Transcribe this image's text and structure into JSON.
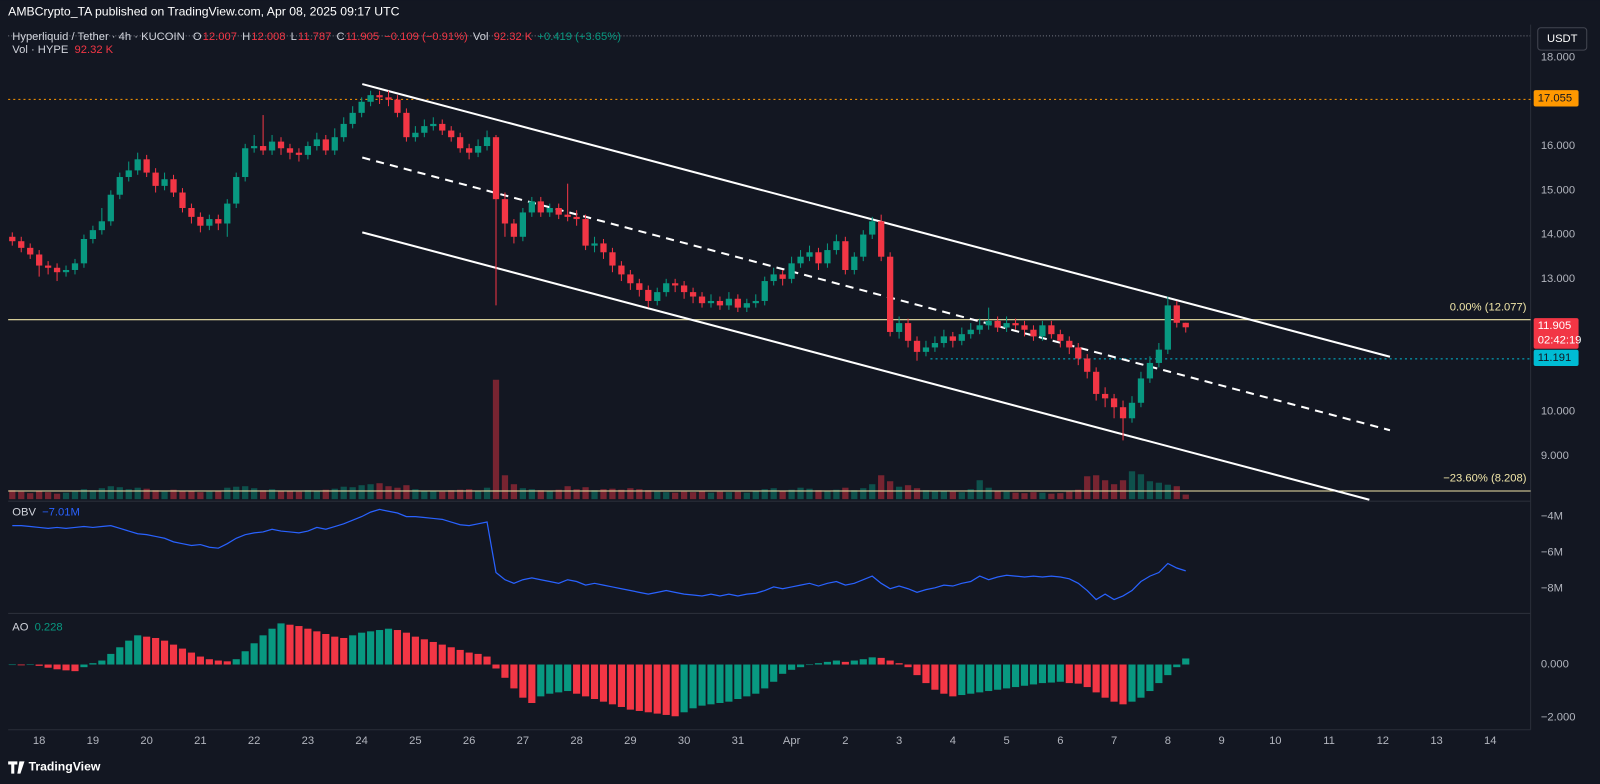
{
  "header": {
    "published": "AMBCrypto_TA published on TradingView.com, Apr 08, 2025 09:17 UTC",
    "currency": "USDT",
    "brand": "TradingView"
  },
  "chart_data": [
    {
      "type": "candlestick",
      "symbol": "Hyperliquid / Tether · 4h · KUCOIN",
      "ohlc_keys": [
        "O",
        "H",
        "L",
        "C"
      ],
      "legend_extra": [
        {
          "text": "−0.109 (−0.91%)",
          "color": "#f23645"
        },
        {
          "text": "Vol",
          "color": "#d1d4dc"
        },
        {
          "text": "92.32 K",
          "color": "#f23645"
        },
        {
          "text": "+0.419 (+3.65%)",
          "color": "#089981"
        }
      ],
      "volume_legend": [
        {
          "text": "Vol · HYPE",
          "color": "#d1d4dc"
        },
        {
          "text": "92.32 K",
          "color": "#f23645"
        }
      ],
      "up_color": "#089981",
      "down_color": "#f23645",
      "open": [
        13.95,
        13.85,
        13.7,
        13.55,
        13.3,
        13.25,
        13.15,
        13.2,
        13.35,
        13.9,
        14.1,
        14.3,
        14.9,
        15.3,
        15.45,
        15.7,
        15.4,
        15.1,
        15.25,
        14.95,
        14.6,
        14.4,
        14.2,
        14.35,
        14.25,
        14.7,
        15.3,
        15.95,
        16.0,
        15.9,
        16.1,
        15.95,
        15.85,
        15.8,
        16.0,
        16.15,
        15.9,
        16.2,
        16.5,
        16.75,
        17.0,
        17.15,
        17.1,
        17.05,
        16.75,
        16.2,
        16.3,
        16.45,
        16.5,
        16.35,
        16.2,
        15.95,
        15.85,
        16.0,
        16.2,
        14.8,
        14.25,
        13.95,
        14.5,
        14.75,
        14.5,
        14.6,
        14.45,
        14.4,
        14.35,
        13.75,
        13.8,
        13.6,
        13.3,
        13.1,
        12.9,
        12.75,
        12.5,
        12.7,
        12.9,
        12.85,
        12.7,
        12.6,
        12.45,
        12.5,
        12.4,
        12.55,
        12.35,
        12.45,
        12.5,
        12.95,
        13.1,
        13.0,
        13.35,
        13.5,
        13.6,
        13.35,
        13.65,
        13.85,
        13.2,
        13.5,
        14.0,
        14.3,
        13.5,
        11.8,
        12.0,
        11.6,
        11.35,
        11.45,
        11.55,
        11.7,
        11.6,
        11.75,
        11.85,
        11.95,
        12.05,
        11.9,
        12.0,
        11.95,
        11.85,
        11.7,
        11.95,
        11.75,
        11.6,
        11.45,
        11.2,
        10.9,
        10.4,
        10.3,
        10.1,
        9.85,
        10.2,
        10.75,
        11.1,
        11.4,
        12.4,
        12.007
      ],
      "high": [
        14.05,
        13.95,
        13.8,
        13.65,
        13.4,
        13.35,
        13.3,
        13.45,
        14.0,
        14.2,
        14.6,
        15.0,
        15.4,
        15.65,
        15.85,
        15.8,
        15.5,
        15.4,
        15.35,
        15.05,
        14.7,
        14.5,
        14.45,
        14.45,
        14.8,
        15.4,
        16.05,
        16.25,
        16.7,
        16.25,
        16.2,
        16.05,
        15.95,
        16.1,
        16.3,
        16.25,
        16.4,
        16.65,
        16.9,
        17.1,
        17.25,
        17.25,
        17.25,
        17.15,
        16.85,
        16.45,
        16.6,
        16.65,
        16.6,
        16.45,
        16.3,
        16.05,
        16.15,
        16.35,
        16.25,
        14.95,
        14.35,
        14.6,
        14.85,
        14.85,
        14.7,
        14.7,
        15.15,
        14.55,
        14.45,
        13.95,
        13.9,
        13.7,
        13.4,
        13.2,
        13.0,
        12.85,
        12.8,
        13.0,
        13.0,
        12.95,
        12.8,
        12.7,
        12.65,
        12.6,
        12.7,
        12.65,
        12.55,
        12.65,
        13.05,
        13.25,
        13.2,
        13.5,
        13.65,
        13.75,
        13.7,
        13.8,
        14.0,
        13.95,
        13.6,
        14.1,
        14.4,
        14.45,
        13.6,
        12.15,
        12.1,
        11.7,
        11.6,
        11.7,
        11.85,
        11.8,
        11.9,
        12.0,
        12.1,
        12.35,
        12.15,
        12.15,
        12.1,
        12.05,
        11.95,
        12.05,
        12.05,
        11.85,
        11.7,
        11.55,
        11.3,
        11.0,
        10.55,
        10.4,
        10.25,
        10.35,
        10.9,
        11.25,
        11.55,
        12.6,
        12.5,
        12.008
      ],
      "low": [
        13.75,
        13.6,
        13.45,
        13.05,
        13.1,
        12.95,
        13.05,
        13.1,
        13.25,
        13.8,
        14.0,
        14.2,
        14.8,
        15.2,
        15.35,
        15.3,
        14.95,
        15.0,
        14.85,
        14.5,
        14.25,
        14.05,
        14.1,
        14.1,
        13.95,
        14.6,
        15.2,
        15.85,
        15.8,
        15.8,
        15.8,
        15.7,
        15.65,
        15.7,
        15.9,
        15.8,
        15.8,
        16.1,
        16.4,
        16.65,
        16.9,
        16.95,
        16.9,
        16.65,
        16.1,
        16.1,
        16.2,
        16.35,
        16.25,
        16.1,
        15.85,
        15.7,
        15.75,
        15.9,
        12.4,
        13.95,
        13.8,
        13.85,
        14.4,
        14.4,
        14.4,
        14.35,
        14.3,
        14.2,
        13.65,
        13.6,
        13.45,
        13.15,
        12.95,
        12.75,
        12.6,
        12.35,
        12.4,
        12.6,
        12.7,
        12.55,
        12.45,
        12.35,
        12.35,
        12.3,
        12.3,
        12.25,
        12.25,
        12.35,
        12.4,
        12.85,
        12.85,
        12.9,
        13.25,
        13.4,
        13.2,
        13.25,
        13.55,
        13.1,
        13.1,
        13.4,
        13.9,
        13.4,
        11.7,
        11.65,
        11.45,
        11.15,
        11.25,
        11.35,
        11.45,
        11.45,
        11.5,
        11.65,
        11.75,
        11.85,
        11.8,
        11.8,
        11.85,
        11.7,
        11.6,
        11.6,
        11.65,
        11.45,
        11.3,
        11.05,
        10.75,
        10.25,
        10.1,
        9.85,
        9.35,
        9.75,
        10.1,
        10.65,
        11.0,
        11.3,
        11.9,
        11.787
      ],
      "close": [
        13.85,
        13.7,
        13.55,
        13.3,
        13.25,
        13.15,
        13.2,
        13.35,
        13.9,
        14.1,
        14.3,
        14.9,
        15.3,
        15.45,
        15.7,
        15.4,
        15.1,
        15.25,
        14.95,
        14.6,
        14.4,
        14.2,
        14.35,
        14.25,
        14.7,
        15.3,
        15.95,
        16.0,
        15.9,
        16.1,
        15.95,
        15.85,
        15.8,
        16.0,
        16.15,
        15.9,
        16.2,
        16.5,
        16.75,
        17.0,
        17.15,
        17.1,
        17.05,
        16.75,
        16.2,
        16.3,
        16.45,
        16.5,
        16.35,
        16.2,
        15.95,
        15.85,
        16.0,
        16.2,
        14.8,
        14.25,
        13.95,
        14.5,
        14.75,
        14.5,
        14.6,
        14.45,
        14.4,
        14.35,
        13.75,
        13.8,
        13.6,
        13.3,
        13.1,
        12.9,
        12.75,
        12.5,
        12.7,
        12.9,
        12.85,
        12.7,
        12.6,
        12.45,
        12.5,
        12.4,
        12.55,
        12.35,
        12.45,
        12.5,
        12.95,
        13.1,
        13.0,
        13.35,
        13.5,
        13.6,
        13.35,
        13.65,
        13.85,
        13.2,
        13.5,
        14.0,
        14.3,
        13.5,
        11.8,
        12.0,
        11.6,
        11.35,
        11.45,
        11.55,
        11.7,
        11.6,
        11.75,
        11.85,
        11.95,
        12.05,
        11.9,
        12.0,
        11.95,
        11.85,
        11.7,
        11.95,
        11.75,
        11.6,
        11.45,
        11.2,
        10.9,
        10.4,
        10.3,
        10.1,
        9.85,
        10.2,
        10.75,
        11.1,
        11.4,
        12.4,
        12.007,
        11.905
      ],
      "volume": [
        180,
        150,
        120,
        160,
        140,
        110,
        130,
        150,
        200,
        180,
        220,
        260,
        240,
        200,
        230,
        210,
        180,
        150,
        190,
        170,
        160,
        140,
        150,
        170,
        230,
        250,
        260,
        220,
        180,
        200,
        170,
        160,
        150,
        180,
        170,
        190,
        210,
        250,
        240,
        280,
        300,
        320,
        260,
        230,
        280,
        200,
        170,
        160,
        150,
        180,
        190,
        200,
        170,
        230,
        2400,
        480,
        300,
        220,
        200,
        180,
        170,
        190,
        260,
        200,
        240,
        180,
        200,
        210,
        190,
        220,
        200,
        180,
        150,
        140,
        130,
        150,
        140,
        160,
        130,
        150,
        140,
        150,
        130,
        160,
        200,
        220,
        170,
        190,
        230,
        210,
        180,
        170,
        190,
        230,
        180,
        220,
        300,
        480,
        360,
        250,
        280,
        220,
        180,
        160,
        170,
        150,
        140,
        200,
        380,
        230,
        170,
        150,
        130,
        120,
        140,
        130,
        110,
        120,
        150,
        190,
        460,
        480,
        380,
        300,
        380,
        560,
        500,
        360,
        330,
        290,
        260,
        92.32
      ],
      "xlim": [
        -0.46,
        169.5
      ],
      "xticks": [
        {
          "value": 3,
          "label": "18"
        },
        {
          "value": 9,
          "label": "19"
        },
        {
          "value": 15,
          "label": "20"
        },
        {
          "value": 21,
          "label": "21"
        },
        {
          "value": 27,
          "label": "22"
        },
        {
          "value": 33,
          "label": "23"
        },
        {
          "value": 39,
          "label": "24"
        },
        {
          "value": 45,
          "label": "25"
        },
        {
          "value": 51,
          "label": "26"
        },
        {
          "value": 57,
          "label": "27"
        },
        {
          "value": 63,
          "label": "28"
        },
        {
          "value": 69,
          "label": "29"
        },
        {
          "value": 75,
          "label": "30"
        },
        {
          "value": 81,
          "label": "31"
        },
        {
          "value": 87,
          "label": "Apr"
        },
        {
          "value": 93,
          "label": "2"
        },
        {
          "value": 99,
          "label": "3"
        },
        {
          "value": 105,
          "label": "4"
        },
        {
          "value": 111,
          "label": "5"
        },
        {
          "value": 117,
          "label": "6"
        },
        {
          "value": 123,
          "label": "7"
        },
        {
          "value": 129,
          "label": "8"
        },
        {
          "value": 135,
          "label": "9"
        },
        {
          "value": 141,
          "label": "10"
        },
        {
          "value": 147,
          "label": "11"
        },
        {
          "value": 153,
          "label": "12"
        },
        {
          "value": 159,
          "label": "13"
        },
        {
          "value": 165,
          "label": "14"
        }
      ],
      "ylim": [
        8.0,
        18.65
      ],
      "yticks": [
        {
          "value": 18,
          "label": "18.000"
        },
        {
          "value": 16,
          "label": "16.000"
        },
        {
          "value": 15,
          "label": "15.000"
        },
        {
          "value": 14,
          "label": "14.000"
        },
        {
          "value": 13,
          "label": "13.000"
        },
        {
          "value": 10,
          "label": "10.000"
        },
        {
          "value": 9,
          "label": "9.000"
        }
      ],
      "levels": [
        {
          "value": 17.055,
          "color": "#ff9800",
          "style": "dotted",
          "start": -0.46
        },
        {
          "value": 11.905,
          "color": "#f23645",
          "style": "none",
          "countdown": "02:42:19"
        },
        {
          "value": 11.191,
          "color": "#00bcd4",
          "style": "dotted",
          "start": 102.5
        }
      ],
      "fib": [
        {
          "value": 12.077,
          "label": "0.00% (12.077)"
        },
        {
          "value": 8.208,
          "label": "−23.60% (8.208)"
        }
      ],
      "fib_color": "#f0e6a8",
      "trendline_color": "#ffffff",
      "trendlines": [
        {
          "style": "solid",
          "x": [
            39.07,
            153.8
          ],
          "y": [
            17.4,
            11.24
          ]
        },
        {
          "style": "solid",
          "x": [
            39.07,
            151.5
          ],
          "y": [
            14.05,
            8.01
          ]
        },
        {
          "style": "dashed",
          "x": [
            39.07,
            153.8
          ],
          "y": [
            15.74,
            9.58
          ]
        }
      ]
    },
    {
      "type": "line",
      "title": "OBV",
      "last_value_label": "−7.01M",
      "color": "#2962ff",
      "values": [
        -4.5,
        -4.5,
        -4.55,
        -4.6,
        -4.65,
        -4.6,
        -4.65,
        -4.6,
        -4.55,
        -4.6,
        -4.55,
        -4.5,
        -4.65,
        -4.8,
        -4.95,
        -5.0,
        -5.1,
        -5.2,
        -5.4,
        -5.5,
        -5.6,
        -5.55,
        -5.7,
        -5.75,
        -5.5,
        -5.2,
        -5.0,
        -4.9,
        -4.85,
        -4.7,
        -4.8,
        -4.85,
        -4.9,
        -4.8,
        -4.6,
        -4.7,
        -4.55,
        -4.4,
        -4.2,
        -4.0,
        -3.75,
        -3.6,
        -3.7,
        -3.8,
        -4.0,
        -4.0,
        -4.05,
        -4.1,
        -4.15,
        -4.3,
        -4.45,
        -4.5,
        -4.4,
        -4.3,
        -7.1,
        -7.5,
        -7.7,
        -7.5,
        -7.4,
        -7.5,
        -7.6,
        -7.7,
        -7.5,
        -7.6,
        -7.8,
        -7.7,
        -7.8,
        -7.9,
        -8.0,
        -8.1,
        -8.2,
        -8.3,
        -8.2,
        -8.1,
        -8.2,
        -8.3,
        -8.35,
        -8.4,
        -8.3,
        -8.4,
        -8.3,
        -8.4,
        -8.3,
        -8.25,
        -8.1,
        -7.9,
        -8.0,
        -7.9,
        -7.8,
        -7.7,
        -7.85,
        -7.7,
        -7.6,
        -7.8,
        -7.7,
        -7.5,
        -7.3,
        -7.7,
        -8.0,
        -7.85,
        -8.0,
        -8.2,
        -8.05,
        -7.95,
        -7.8,
        -7.85,
        -7.7,
        -7.6,
        -7.3,
        -7.5,
        -7.35,
        -7.25,
        -7.3,
        -7.35,
        -7.3,
        -7.35,
        -7.3,
        -7.35,
        -7.45,
        -7.7,
        -8.1,
        -8.6,
        -8.3,
        -8.6,
        -8.4,
        -8.1,
        -7.6,
        -7.3,
        -7.1,
        -6.6,
        -6.85,
        -7.01
      ],
      "ylim": [
        -9.2,
        -3.2
      ],
      "yticks": [
        {
          "value": -4,
          "label": "−4M"
        },
        {
          "value": -6,
          "label": "−6M"
        },
        {
          "value": -8,
          "label": "−8M"
        }
      ]
    },
    {
      "type": "histogram",
      "title": "AO",
      "up_color": "#089981",
      "down_color": "#f23645",
      "values": [
        -0.02,
        -0.03,
        0.0,
        -0.05,
        -0.12,
        -0.18,
        -0.22,
        -0.25,
        -0.1,
        0.05,
        0.15,
        0.4,
        0.65,
        0.9,
        1.1,
        1.05,
        1.0,
        0.9,
        0.75,
        0.6,
        0.45,
        0.3,
        0.2,
        0.15,
        0.12,
        0.2,
        0.5,
        0.8,
        1.1,
        1.35,
        1.55,
        1.5,
        1.45,
        1.35,
        1.25,
        1.15,
        1.05,
        1.0,
        1.1,
        1.2,
        1.25,
        1.3,
        1.35,
        1.3,
        1.2,
        1.05,
        0.95,
        0.85,
        0.75,
        0.65,
        0.55,
        0.45,
        0.4,
        0.3,
        -0.15,
        -0.5,
        -0.9,
        -1.25,
        -1.45,
        -1.2,
        -1.1,
        -1.05,
        -1.0,
        -1.1,
        -1.2,
        -1.3,
        -1.4,
        -1.5,
        -1.6,
        -1.7,
        -1.75,
        -1.8,
        -1.85,
        -1.9,
        -1.95,
        -1.8,
        -1.65,
        -1.55,
        -1.5,
        -1.45,
        -1.4,
        -1.3,
        -1.2,
        -1.1,
        -0.9,
        -0.65,
        -0.35,
        -0.2,
        -0.1,
        -0.02,
        0.05,
        0.1,
        0.15,
        0.1,
        0.15,
        0.2,
        0.27,
        0.25,
        0.15,
        0.05,
        -0.1,
        -0.4,
        -0.7,
        -0.95,
        -1.1,
        -1.2,
        -1.15,
        -1.1,
        -1.05,
        -1.0,
        -0.95,
        -0.9,
        -0.85,
        -0.8,
        -0.75,
        -0.7,
        -0.68,
        -0.65,
        -0.7,
        -0.72,
        -0.85,
        -1.05,
        -1.25,
        -1.4,
        -1.5,
        -1.4,
        -1.25,
        -1.0,
        -0.7,
        -0.4,
        -0.1,
        0.228
      ],
      "ylim": [
        -2.42,
        1.81
      ],
      "yticks": [
        {
          "value": 0,
          "label": "0.000"
        },
        {
          "value": -2,
          "label": "−2.000"
        }
      ]
    }
  ]
}
